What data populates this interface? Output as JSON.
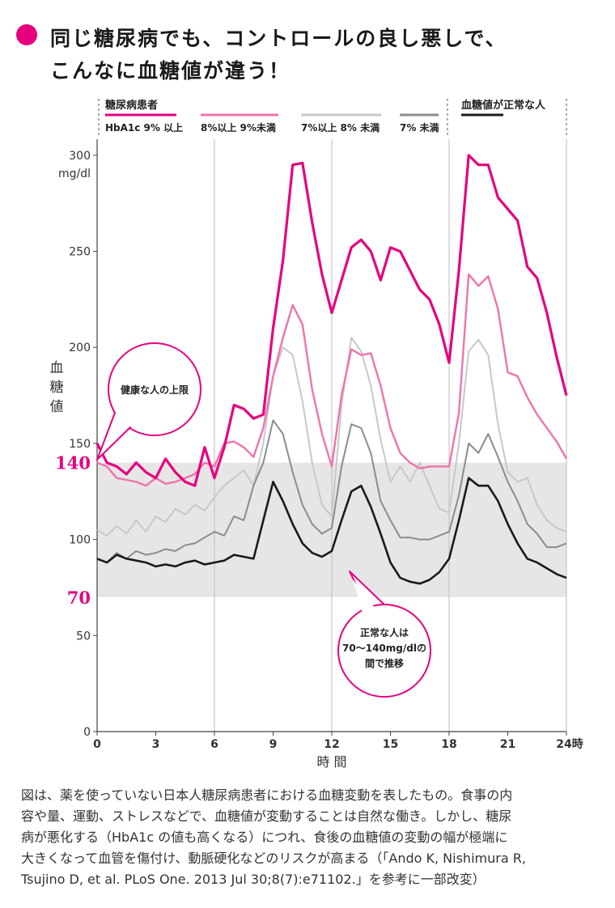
{
  "title": {
    "line1": "同じ糖尿病でも、コントロールの良し悪しで、",
    "line2": "こんなに血糖値が違う！"
  },
  "legend": {
    "group_diabetic": "糖尿病患者",
    "group_normal": "血糖値が正常な人"
  },
  "callouts": {
    "upper_limit": "健康な人の上限",
    "normal_range": [
      "正常な人は",
      "70〜140mg/dlの",
      "間で推移"
    ]
  },
  "caption_lines": [
    "図は、薬を使っていない日本人糖尿病患者における血糖変動を表したもの。食事の内",
    "容や量、運動、ストレスなどで、血糖値が変動することは自然な働き。しかし、糖尿",
    "病が悪化する（HbA1c の値も高くなる）につれ、食後の血糖値の変動の幅が極端に",
    "大きくなって血管を傷付け、動脈硬化などのリスクが高まる（「Ando K, Nishimura R,",
    "Tsujino D, et al. PLoS One. 2013 Jul 30;8(7):e71102.」を参考に一部改変）"
  ],
  "colors": {
    "accent": "#e6007e",
    "band": "#e6e6e6"
  },
  "chart_data": {
    "type": "line",
    "ylabel": "血糖値",
    "yunit": "mg/dl",
    "xlabel": "時 間",
    "x_tick_labels": [
      "0",
      "3",
      "6",
      "9",
      "12",
      "15",
      "18",
      "21",
      "24時"
    ],
    "x_tick_values": [
      0,
      3,
      6,
      9,
      12,
      15,
      18,
      21,
      24
    ],
    "y_tick_labels": [
      "0",
      "50",
      "100",
      "150",
      "200",
      "250",
      "300"
    ],
    "y_tick_values": [
      0,
      50,
      100,
      150,
      200,
      250,
      300
    ],
    "highlight_ticks": [
      {
        "label": "140",
        "value": 140
      },
      {
        "label": "70",
        "value": 70
      }
    ],
    "xlim": [
      0,
      24
    ],
    "ylim": [
      0,
      305
    ],
    "grid_x": [
      6,
      12,
      18
    ],
    "band": [
      70,
      140
    ],
    "series": [
      {
        "name": "HbA1c 9% 以上",
        "color": "#e6007e",
        "width": 3.2,
        "x": [
          0,
          0.5,
          1,
          1.5,
          2,
          2.5,
          3,
          3.5,
          4,
          4.5,
          5,
          5.5,
          6,
          6.5,
          7,
          7.5,
          8,
          8.5,
          9,
          9.5,
          10,
          10.5,
          11,
          11.5,
          12,
          12.5,
          13,
          13.5,
          14,
          14.5,
          15,
          15.5,
          16,
          16.5,
          17,
          17.5,
          18,
          18.5,
          19,
          19.5,
          20,
          20.5,
          21,
          21.5,
          22,
          22.5,
          23,
          23.5,
          24
        ],
        "y": [
          150,
          140,
          138,
          134,
          140,
          135,
          132,
          142,
          135,
          130,
          128,
          148,
          132,
          148,
          170,
          168,
          163,
          165,
          210,
          245,
          295,
          296,
          265,
          238,
          218,
          235,
          252,
          256,
          250,
          235,
          252,
          250,
          240,
          230,
          225,
          212,
          192,
          240,
          300,
          295,
          295,
          278,
          272,
          266,
          242,
          236,
          218,
          195,
          175
        ]
      },
      {
        "name": "8%以上 9%未満",
        "color": "#ef74ac",
        "width": 2.4,
        "x": [
          0,
          0.5,
          1,
          1.5,
          2,
          2.5,
          3,
          3.5,
          4,
          4.5,
          5,
          5.5,
          6,
          6.5,
          7,
          7.5,
          8,
          8.5,
          9,
          9.5,
          10,
          10.5,
          11,
          11.5,
          12,
          12.5,
          13,
          13.5,
          14,
          14.5,
          15,
          15.5,
          16,
          16.5,
          17,
          17.5,
          18,
          18.5,
          19,
          19.5,
          20,
          20.5,
          21,
          21.5,
          22,
          22.5,
          23,
          23.5,
          24
        ],
        "y": [
          140,
          138,
          132,
          131,
          130,
          128,
          132,
          129,
          130,
          132,
          134,
          140,
          138,
          150,
          151,
          148,
          143,
          158,
          185,
          205,
          222,
          212,
          178,
          155,
          138,
          175,
          199,
          196,
          197,
          180,
          158,
          145,
          140,
          137,
          138,
          138,
          138,
          166,
          238,
          232,
          237,
          220,
          187,
          185,
          174,
          165,
          158,
          151,
          142
        ]
      },
      {
        "name": "7%以上 8% 未満",
        "color": "#c8c8c8",
        "width": 2.0,
        "x": [
          0,
          0.5,
          1,
          1.5,
          2,
          2.5,
          3,
          3.5,
          4,
          4.5,
          5,
          5.5,
          6,
          6.5,
          7,
          7.5,
          8,
          8.5,
          9,
          9.5,
          10,
          10.5,
          11,
          11.5,
          12,
          12.5,
          13,
          13.5,
          14,
          14.5,
          15,
          15.5,
          16,
          16.5,
          17,
          17.5,
          18,
          18.5,
          19,
          19.5,
          20,
          20.5,
          21,
          21.5,
          22,
          22.5,
          23,
          23.5,
          24
        ],
        "y": [
          105,
          102,
          107,
          103,
          110,
          104,
          112,
          109,
          116,
          113,
          118,
          115,
          122,
          128,
          132,
          136,
          128,
          150,
          185,
          200,
          196,
          172,
          140,
          118,
          112,
          170,
          205,
          198,
          180,
          152,
          130,
          138,
          130,
          140,
          128,
          116,
          114,
          150,
          198,
          204,
          196,
          160,
          135,
          130,
          132,
          118,
          110,
          106,
          104
        ]
      },
      {
        "name": "7% 未満",
        "color": "#8c8c8c",
        "width": 2.0,
        "x": [
          0,
          0.5,
          1,
          1.5,
          2,
          2.5,
          3,
          3.5,
          4,
          4.5,
          5,
          5.5,
          6,
          6.5,
          7,
          7.5,
          8,
          8.5,
          9,
          9.5,
          10,
          10.5,
          11,
          11.5,
          12,
          12.5,
          13,
          13.5,
          14,
          14.5,
          15,
          15.5,
          16,
          16.5,
          17,
          17.5,
          18,
          18.5,
          19,
          19.5,
          20,
          20.5,
          21,
          21.5,
          22,
          22.5,
          23,
          23.5,
          24
        ],
        "y": [
          90,
          88,
          93,
          90,
          94,
          92,
          93,
          95,
          94,
          97,
          98,
          101,
          104,
          102,
          112,
          110,
          128,
          140,
          162,
          155,
          135,
          118,
          108,
          103,
          106,
          138,
          160,
          158,
          145,
          120,
          110,
          101,
          101,
          100,
          100,
          102,
          104,
          123,
          150,
          145,
          155,
          143,
          130,
          120,
          108,
          103,
          96,
          96,
          98
        ]
      },
      {
        "name": "",
        "color": "#1a1a1a",
        "width": 2.6,
        "x": [
          0,
          0.5,
          1,
          1.5,
          2,
          2.5,
          3,
          3.5,
          4,
          4.5,
          5,
          5.5,
          6,
          6.5,
          7,
          7.5,
          8,
          8.5,
          9,
          9.5,
          10,
          10.5,
          11,
          11.5,
          12,
          12.5,
          13,
          13.5,
          14,
          14.5,
          15,
          15.5,
          16,
          16.5,
          17,
          17.5,
          18,
          18.5,
          19,
          19.5,
          20,
          20.5,
          21,
          21.5,
          22,
          22.5,
          23,
          23.5,
          24
        ],
        "y": [
          90,
          88,
          92,
          90,
          89,
          88,
          86,
          87,
          86,
          88,
          89,
          87,
          88,
          89,
          92,
          91,
          90,
          110,
          130,
          120,
          108,
          98,
          93,
          91,
          94,
          110,
          125,
          128,
          117,
          103,
          88,
          80,
          78,
          77,
          79,
          83,
          90,
          110,
          132,
          128,
          128,
          120,
          108,
          98,
          90,
          88,
          85,
          82,
          80
        ]
      }
    ]
  }
}
